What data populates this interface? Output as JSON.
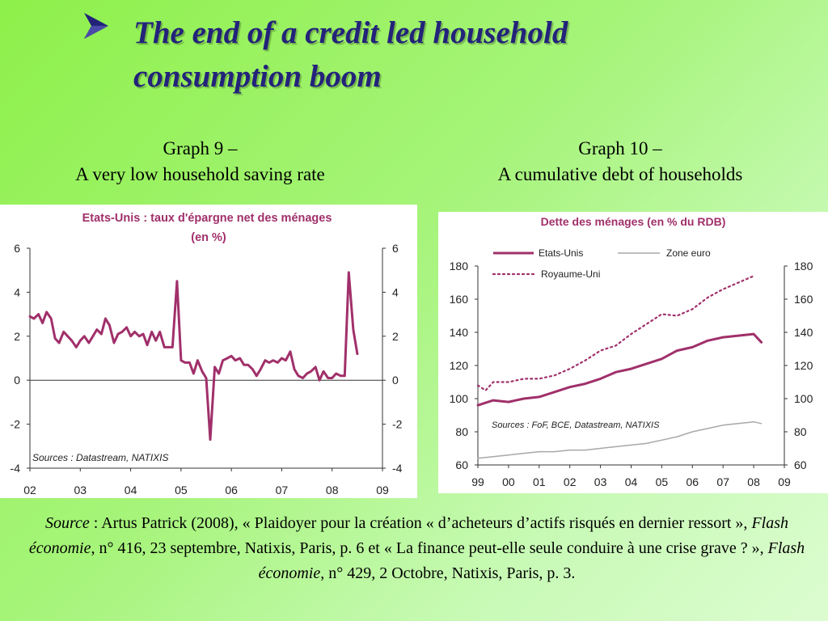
{
  "slide": {
    "title_line1": "The end of a credit led household",
    "title_line2": "consumption boom",
    "graph9_caption_line1": "Graph 9 –",
    "graph9_caption_line2": "A very low household saving rate",
    "graph10_caption_line1": "Graph 10 –",
    "graph10_caption_line2": "A cumulative debt of households",
    "source": {
      "label": "Source",
      "text1": " : Artus Patrick (2008), « Plaidoyer pour la création « d’acheteurs d’actifs risqués en dernier ressort », ",
      "journal1": "Flash économie",
      "text2": ", n° 416, 23 septembre, Natixis, Paris, p. 6 et « La finance peut-elle seule conduire à une crise grave ? », ",
      "journal2": "Flash économie",
      "text3": ", n° 429, 2 Octobre, Natixis, Paris, p. 3."
    },
    "bullet_icon": "arrow-bullet-icon"
  },
  "chart_data": [
    {
      "type": "line",
      "title": "Etats-Unis : taux d'épargne net des ménages",
      "subtitle": "(en %)",
      "source_note": "Sources : Datastream, NATIXIS",
      "ylim": [
        -4,
        6
      ],
      "yticks": [
        "6",
        "4",
        "2",
        "0",
        "-2",
        "-4"
      ],
      "xlim": [
        2002,
        2009
      ],
      "xticks": [
        "02",
        "03",
        "04",
        "05",
        "06",
        "07",
        "08",
        "09"
      ],
      "grid": false,
      "series": [
        {
          "color": "#a0306a",
          "x": [
            2002.0,
            2002.08,
            2002.17,
            2002.25,
            2002.33,
            2002.42,
            2002.5,
            2002.58,
            2002.67,
            2002.75,
            2002.83,
            2002.92,
            2003.0,
            2003.08,
            2003.17,
            2003.25,
            2003.33,
            2003.42,
            2003.5,
            2003.58,
            2003.67,
            2003.75,
            2003.83,
            2003.92,
            2004.0,
            2004.08,
            2004.17,
            2004.25,
            2004.33,
            2004.42,
            2004.5,
            2004.58,
            2004.67,
            2004.75,
            2004.83,
            2004.92,
            2005.0,
            2005.08,
            2005.17,
            2005.25,
            2005.33,
            2005.42,
            2005.5,
            2005.58,
            2005.67,
            2005.75,
            2005.83,
            2005.92,
            2006.0,
            2006.08,
            2006.17,
            2006.25,
            2006.33,
            2006.42,
            2006.5,
            2006.58,
            2006.67,
            2006.75,
            2006.83,
            2006.92,
            2007.0,
            2007.08,
            2007.17,
            2007.25,
            2007.33,
            2007.42,
            2007.5,
            2007.58,
            2007.67,
            2007.75,
            2007.83,
            2007.92,
            2008.0,
            2008.08,
            2008.17,
            2008.25,
            2008.33,
            2008.42,
            2008.5
          ],
          "values": [
            2.9,
            2.8,
            3.0,
            2.6,
            3.1,
            2.8,
            1.9,
            1.7,
            2.2,
            2.0,
            1.8,
            1.5,
            1.8,
            2.0,
            1.7,
            2.0,
            2.3,
            2.1,
            2.8,
            2.5,
            1.7,
            2.1,
            2.2,
            2.4,
            2.0,
            2.2,
            2.0,
            2.1,
            1.6,
            2.2,
            1.8,
            2.2,
            1.5,
            1.5,
            1.5,
            4.5,
            0.9,
            0.8,
            0.8,
            0.3,
            0.9,
            0.4,
            0.1,
            -2.7,
            0.6,
            0.3,
            0.9,
            1.0,
            1.1,
            0.9,
            1.0,
            0.7,
            0.7,
            0.5,
            0.2,
            0.5,
            0.9,
            0.8,
            0.9,
            0.8,
            1.0,
            0.9,
            1.3,
            0.5,
            0.2,
            0.1,
            0.3,
            0.4,
            0.6,
            0.0,
            0.4,
            0.1,
            0.1,
            0.3,
            0.2,
            0.2,
            4.9,
            2.3,
            1.2
          ]
        }
      ]
    },
    {
      "type": "line",
      "title": "Dette des ménages (en % du RDB)",
      "source_note": "Sources : FoF, BCE, Datastream, NATIXIS",
      "ylim": [
        60,
        180
      ],
      "yticks": [
        "180",
        "160",
        "140",
        "120",
        "100",
        "80",
        "60"
      ],
      "xlim": [
        1999,
        2009
      ],
      "xticks": [
        "99",
        "00",
        "01",
        "02",
        "03",
        "04",
        "05",
        "06",
        "07",
        "08",
        "09"
      ],
      "grid": false,
      "legend_position": "top-left",
      "series": [
        {
          "name": "Etats-Unis",
          "color": "#a0306a",
          "style": "solid-thick",
          "x": [
            1999.0,
            1999.5,
            2000.0,
            2000.5,
            2001.0,
            2001.5,
            2002.0,
            2002.5,
            2003.0,
            2003.5,
            2004.0,
            2004.5,
            2005.0,
            2005.5,
            2006.0,
            2006.5,
            2007.0,
            2007.5,
            2008.0,
            2008.25
          ],
          "values": [
            96,
            99,
            98,
            100,
            101,
            104,
            107,
            109,
            112,
            116,
            118,
            121,
            124,
            129,
            131,
            135,
            137,
            138,
            139,
            134
          ]
        },
        {
          "name": "Zone euro",
          "color": "#a8a8a8",
          "style": "solid-thin",
          "x": [
            1999.0,
            1999.5,
            2000.0,
            2000.5,
            2001.0,
            2001.5,
            2002.0,
            2002.5,
            2003.0,
            2003.5,
            2004.0,
            2004.5,
            2005.0,
            2005.5,
            2006.0,
            2006.5,
            2007.0,
            2007.5,
            2008.0,
            2008.25
          ],
          "values": [
            64,
            65,
            66,
            67,
            68,
            68,
            69,
            69,
            70,
            71,
            72,
            73,
            75,
            77,
            80,
            82,
            84,
            85,
            86,
            85
          ]
        },
        {
          "name": "Royaume-Uni",
          "color": "#a0306a",
          "style": "dotted",
          "x": [
            1999.0,
            1999.25,
            1999.5,
            2000.0,
            2000.5,
            2001.0,
            2001.5,
            2002.0,
            2002.5,
            2003.0,
            2003.5,
            2004.0,
            2004.5,
            2005.0,
            2005.5,
            2006.0,
            2006.5,
            2007.0,
            2007.5,
            2008.0
          ],
          "values": [
            108,
            105,
            110,
            110,
            112,
            112,
            114,
            118,
            123,
            129,
            132,
            139,
            145,
            151,
            150,
            154,
            161,
            166,
            170,
            174
          ]
        }
      ]
    }
  ]
}
